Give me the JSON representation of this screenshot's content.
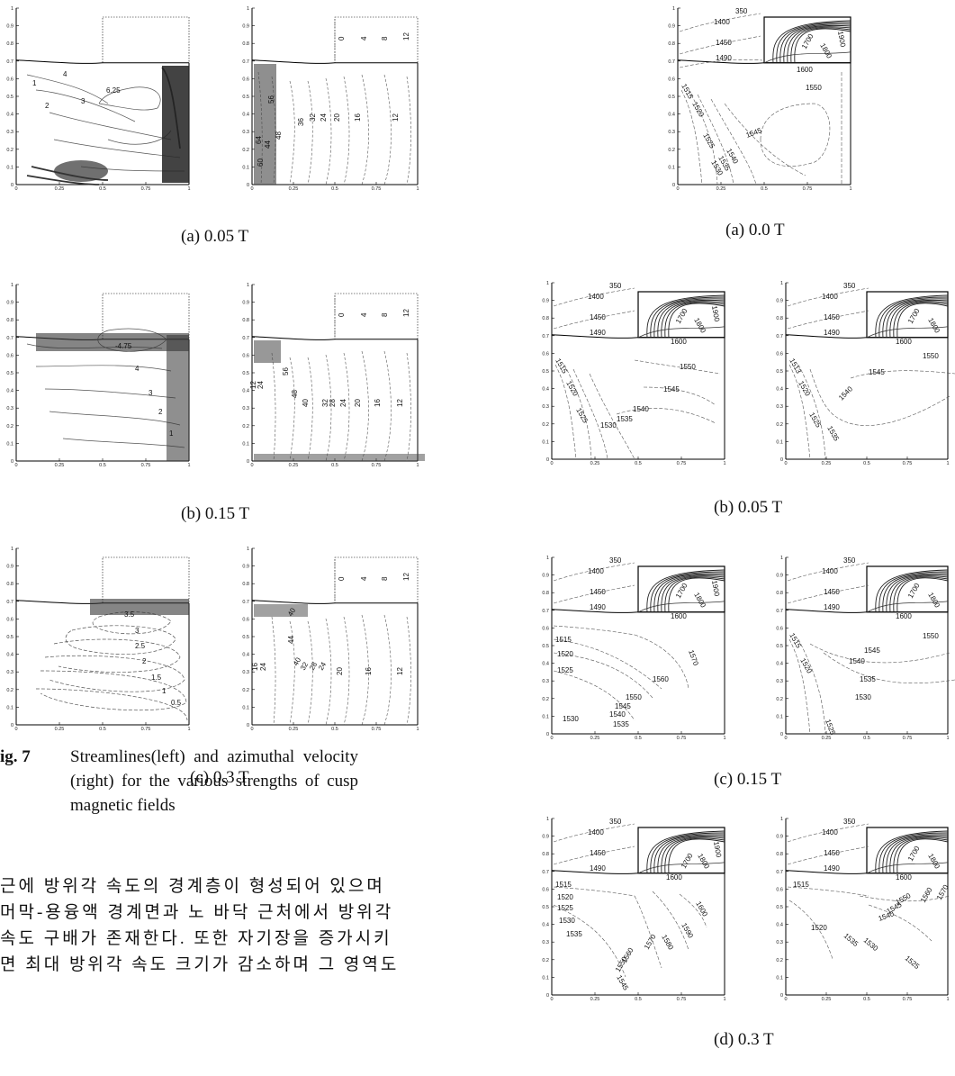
{
  "figure7": {
    "panels": [
      {
        "caption": "(a)  0.05  T",
        "stream_labels": [
          "6.25",
          "4",
          "3",
          "2",
          "1"
        ],
        "vel_labels": [
          "64",
          "56",
          "48",
          "36",
          "32",
          "24",
          "20",
          "16",
          "12",
          "44",
          "60"
        ]
      },
      {
        "caption": "(b)  0.15  T",
        "stream_labels": [
          "-4.75",
          "4",
          "3",
          "2",
          "1"
        ],
        "vel_labels": [
          "56",
          "48",
          "40",
          "32",
          "28",
          "24",
          "20",
          "16",
          "12",
          "12",
          "24"
        ]
      },
      {
        "caption": "(c)  0.3  T",
        "stream_labels": [
          "3.5",
          "3",
          "2.5",
          "2",
          "1.5",
          "1",
          "0.5"
        ],
        "vel_labels": [
          "40",
          "44",
          "40",
          "32",
          "28",
          "24",
          "20",
          "16",
          "12",
          "16",
          "24"
        ]
      }
    ],
    "top_vel_labels": [
      "0",
      "4",
      "8",
      "12"
    ],
    "fig_number": "ig.  7",
    "fig_caption": "Streamlines(left)  and  azimuthal  velocity (right)  for  the  various  strengths  of  cusp magnetic fields"
  },
  "axes": {
    "y_ticks": [
      "1",
      "0.9",
      "0.8",
      "0.7",
      "0.6",
      "0.5",
      "0.4",
      "0.3",
      "0.2",
      "0.1",
      "0"
    ],
    "x_ticks": [
      "0",
      "0.25",
      "0.5",
      "0.75",
      "1"
    ]
  },
  "figure8": {
    "captions": [
      "(a)  0.0  T",
      "(b)  0.05  T",
      "(c)  0.15  T",
      "(d)  0.3  T"
    ],
    "top_labels": [
      "350",
      "1400",
      "1450",
      "1490"
    ],
    "crystal_labels": [
      "1700",
      "1800",
      "1900",
      "1600"
    ],
    "a_labels": [
      "1550",
      "1515",
      "1520",
      "1525",
      "1530",
      "1535",
      "1540",
      "1545",
      "1550"
    ],
    "b_left": [
      "1550",
      "1545",
      "1540",
      "1535",
      "1530",
      "1525",
      "1520",
      "1515"
    ],
    "b_right": [
      "1550",
      "1545",
      "1540",
      "1535",
      "1525",
      "1520",
      "1513"
    ],
    "c_left": [
      "1570",
      "1560",
      "1550",
      "1545",
      "1540",
      "1535",
      "1530",
      "1525",
      "1520",
      "1515"
    ],
    "c_right": [
      "1550",
      "1545",
      "1540",
      "1535",
      "1530",
      "1525",
      "1520",
      "1515"
    ],
    "d_left": [
      "1600",
      "1590",
      "1580",
      "1570",
      "1560",
      "1550",
      "1545",
      "1535",
      "1530",
      "1525",
      "1520",
      "1515"
    ],
    "d_right": [
      "1570",
      "1560",
      "1550",
      "1545",
      "1540",
      "1535",
      "1530",
      "1525",
      "1520",
      "1515"
    ]
  },
  "korean_text": [
    "근에 방위각 속도의 경계층이 형성되어 있으며",
    "머막-용융액 경계면과 노 바닥 근처에서 방위각",
    "속도 구배가 존재한다. 또한 자기장을 증가시키",
    "면 최대 방위각 속도 크기가 감소하며 그 영역도"
  ]
}
